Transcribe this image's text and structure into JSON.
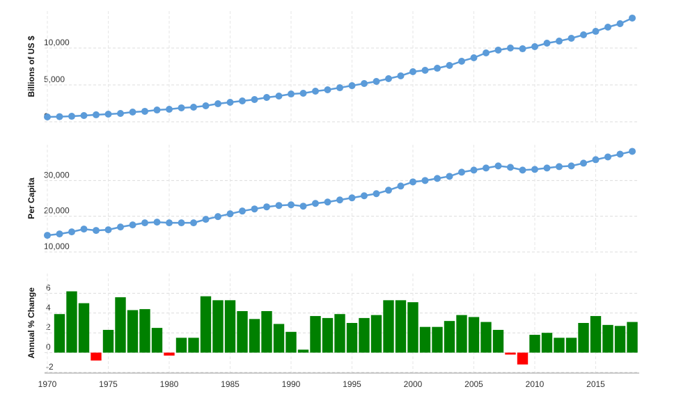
{
  "chart_data": [
    {
      "type": "line",
      "ylabel": "Billions of US $",
      "color": "#5b9bd9",
      "xlim": [
        1970,
        2018
      ],
      "ylim": [
        0,
        15000
      ],
      "yticks": [
        0,
        {
          "value": 5000,
          "label": "5,000"
        },
        {
          "value": 10000,
          "label": "10,000"
        }
      ],
      "grid": true,
      "x": [
        1970,
        1971,
        1972,
        1973,
        1974,
        1975,
        1976,
        1977,
        1978,
        1979,
        1980,
        1981,
        1982,
        1983,
        1984,
        1985,
        1986,
        1987,
        1988,
        1989,
        1990,
        1991,
        1992,
        1993,
        1994,
        1995,
        1996,
        1997,
        1998,
        1999,
        2000,
        2001,
        2002,
        2003,
        2004,
        2005,
        2006,
        2007,
        2008,
        2009,
        2010,
        2011,
        2012,
        2013,
        2014,
        2015,
        2016,
        2017,
        2018
      ],
      "values": [
        660,
        700,
        750,
        850,
        950,
        1040,
        1130,
        1320,
        1420,
        1600,
        1700,
        1890,
        1980,
        2170,
        2450,
        2640,
        2830,
        3020,
        3300,
        3490,
        3770,
        3870,
        4150,
        4340,
        4620,
        4900,
        5190,
        5470,
        5850,
        6230,
        6790,
        6980,
        7260,
        7640,
        8210,
        8680,
        9340,
        9720,
        10000,
        9900,
        10190,
        10660,
        10940,
        11320,
        11790,
        12260,
        12830,
        13300,
        14060
      ]
    },
    {
      "type": "line",
      "ylabel": "Per Capita",
      "color": "#5b9bd9",
      "xlim": [
        1970,
        2018
      ],
      "ylim": [
        10000,
        40000
      ],
      "yticks": [
        {
          "value": 10000,
          "label": "10,000"
        },
        {
          "value": 20000,
          "label": "20,000"
        },
        {
          "value": 30000,
          "label": "30,000"
        }
      ],
      "grid": true,
      "x": [
        1970,
        1971,
        1972,
        1973,
        1974,
        1975,
        1976,
        1977,
        1978,
        1979,
        1980,
        1981,
        1982,
        1983,
        1984,
        1985,
        1986,
        1987,
        1988,
        1989,
        1990,
        1991,
        1992,
        1993,
        1994,
        1995,
        1996,
        1997,
        1998,
        1999,
        2000,
        2001,
        2002,
        2003,
        2004,
        2005,
        2006,
        2007,
        2008,
        2009,
        2010,
        2011,
        2012,
        2013,
        2014,
        2015,
        2016,
        2017,
        2018
      ],
      "values": [
        14660,
        15050,
        15630,
        16410,
        16020,
        16210,
        16990,
        17570,
        18160,
        18350,
        18160,
        18160,
        18160,
        19130,
        19900,
        20680,
        21460,
        22040,
        22620,
        23010,
        23200,
        22820,
        23590,
        23980,
        24560,
        25150,
        25730,
        26310,
        27280,
        28450,
        29610,
        30000,
        30580,
        31170,
        32330,
        32910,
        33500,
        34080,
        33690,
        32910,
        33110,
        33500,
        33880,
        34080,
        34850,
        35830,
        36600,
        37380,
        38160
      ]
    },
    {
      "type": "bar",
      "ylabel": "Annual % Change",
      "color": "#008000",
      "negative_color": "#ff0000",
      "xlim": [
        1970,
        2018
      ],
      "ylim": [
        -2,
        8
      ],
      "yticks": [
        -2,
        0,
        2,
        4,
        6
      ],
      "xticks": [
        1970,
        1975,
        1980,
        1985,
        1990,
        1995,
        2000,
        2005,
        2010,
        2015
      ],
      "grid": true,
      "x": [
        1971,
        1972,
        1973,
        1974,
        1975,
        1976,
        1977,
        1978,
        1979,
        1980,
        1981,
        1982,
        1983,
        1984,
        1985,
        1986,
        1987,
        1988,
        1989,
        1990,
        1991,
        1992,
        1993,
        1994,
        1995,
        1996,
        1997,
        1998,
        1999,
        2000,
        2001,
        2002,
        2003,
        2004,
        2005,
        2006,
        2007,
        2008,
        2009,
        2010,
        2011,
        2012,
        2013,
        2014,
        2015,
        2016,
        2017,
        2018
      ],
      "values": [
        3.9,
        6.2,
        5.0,
        -0.8,
        2.3,
        5.6,
        4.3,
        4.4,
        2.5,
        -0.3,
        1.5,
        1.5,
        5.7,
        5.3,
        5.3,
        4.2,
        3.4,
        4.2,
        2.9,
        2.1,
        0.3,
        3.7,
        3.5,
        3.9,
        3.0,
        3.5,
        3.8,
        5.3,
        5.3,
        5.1,
        2.6,
        2.6,
        3.2,
        3.8,
        3.6,
        3.1,
        2.3,
        -0.2,
        -1.2,
        1.8,
        2.0,
        1.5,
        1.5,
        3.0,
        3.7,
        2.8,
        2.7,
        3.1
      ]
    }
  ]
}
